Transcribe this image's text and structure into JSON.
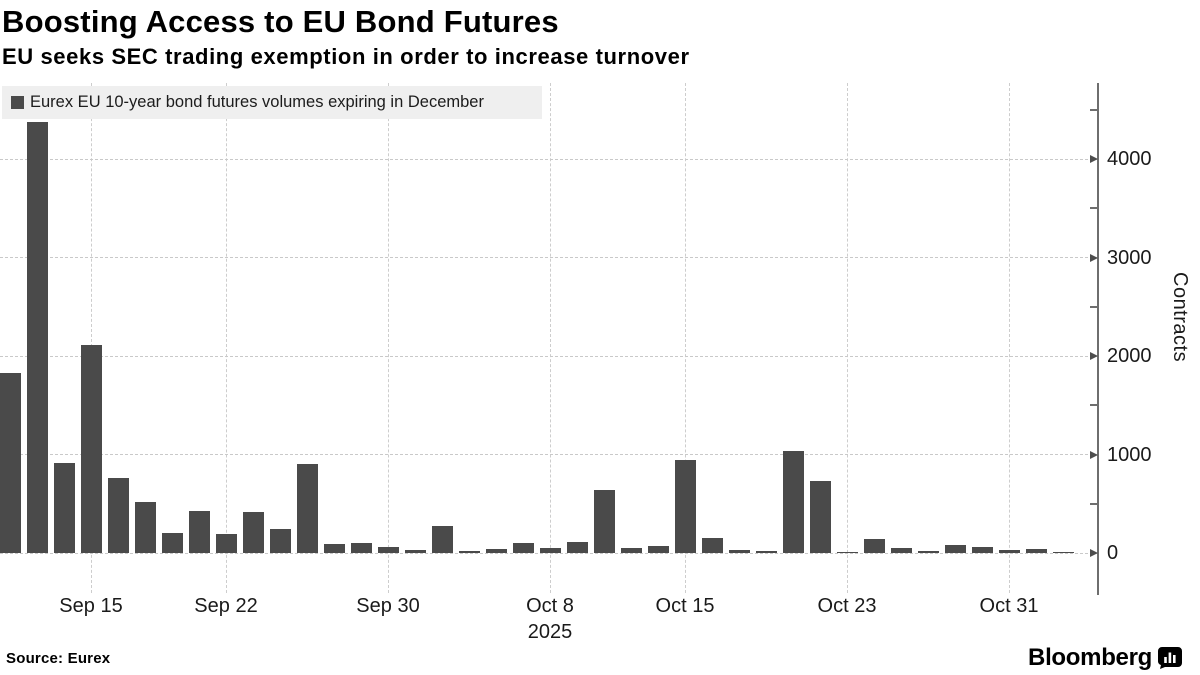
{
  "header": {
    "title": "Boosting Access to EU Bond Futures",
    "subtitle": "EU seeks SEC trading exemption in order to increase turnover"
  },
  "chart_data": {
    "type": "bar",
    "title": "Boosting Access to EU Bond Futures",
    "subtitle": "EU seeks SEC trading exemption in order to increase turnover",
    "legend_label": "Eurex EU 10-year bond futures volumes expiring in December",
    "legend_position": "top-left",
    "grid": true,
    "xlabel": "",
    "ylabel": "Contracts",
    "ylim": [
      0,
      4600
    ],
    "yticks_major": [
      0,
      1000,
      2000,
      3000,
      4000
    ],
    "yticks_minor": [
      500,
      1500,
      2500,
      3500,
      4500
    ],
    "categories": [
      "Sep 10",
      "Sep 11",
      "Sep 12",
      "Sep 15",
      "Sep 16",
      "Sep 17",
      "Sep 18",
      "Sep 19",
      "Sep 22",
      "Sep 23",
      "Sep 24",
      "Sep 25",
      "Sep 26",
      "Sep 29",
      "Sep 30",
      "Oct 1",
      "Oct 2",
      "Oct 3",
      "Oct 6",
      "Oct 7",
      "Oct 8",
      "Oct 9",
      "Oct 10",
      "Oct 13",
      "Oct 14",
      "Oct 15",
      "Oct 16",
      "Oct 17",
      "Oct 20",
      "Oct 21",
      "Oct 22",
      "Oct 23",
      "Oct 24",
      "Oct 27",
      "Oct 28",
      "Oct 29",
      "Oct 30",
      "Oct 31",
      "Nov 3",
      "Nov 4"
    ],
    "values": [
      1830,
      4380,
      910,
      2110,
      760,
      520,
      200,
      430,
      190,
      420,
      245,
      900,
      90,
      100,
      65,
      30,
      275,
      20,
      40,
      100,
      55,
      110,
      640,
      50,
      70,
      940,
      150,
      30,
      20,
      1040,
      730,
      15,
      145,
      50,
      25,
      80,
      60,
      30,
      40,
      5
    ],
    "xtick_labels": [
      "Sep 15",
      "Sep 22",
      "Sep 30",
      "Oct 8",
      "Oct 15",
      "Oct 23",
      "Oct 31"
    ],
    "xtick_indices": [
      3,
      8,
      14,
      20,
      25,
      31,
      37
    ],
    "year_label": "2025",
    "year_label_under": "Oct 8",
    "bar_color": "#4a4a4a",
    "series_name": "Eurex EU 10-year bond futures volumes expiring in December"
  },
  "footer": {
    "source": "Source: Eurex",
    "brand": "Bloomberg"
  },
  "colors": {
    "bar": "#4a4a4a",
    "grid": "#c9c9c9",
    "axis": "#6e6e6e",
    "legend_bg": "#efefef",
    "text": "#000000"
  }
}
